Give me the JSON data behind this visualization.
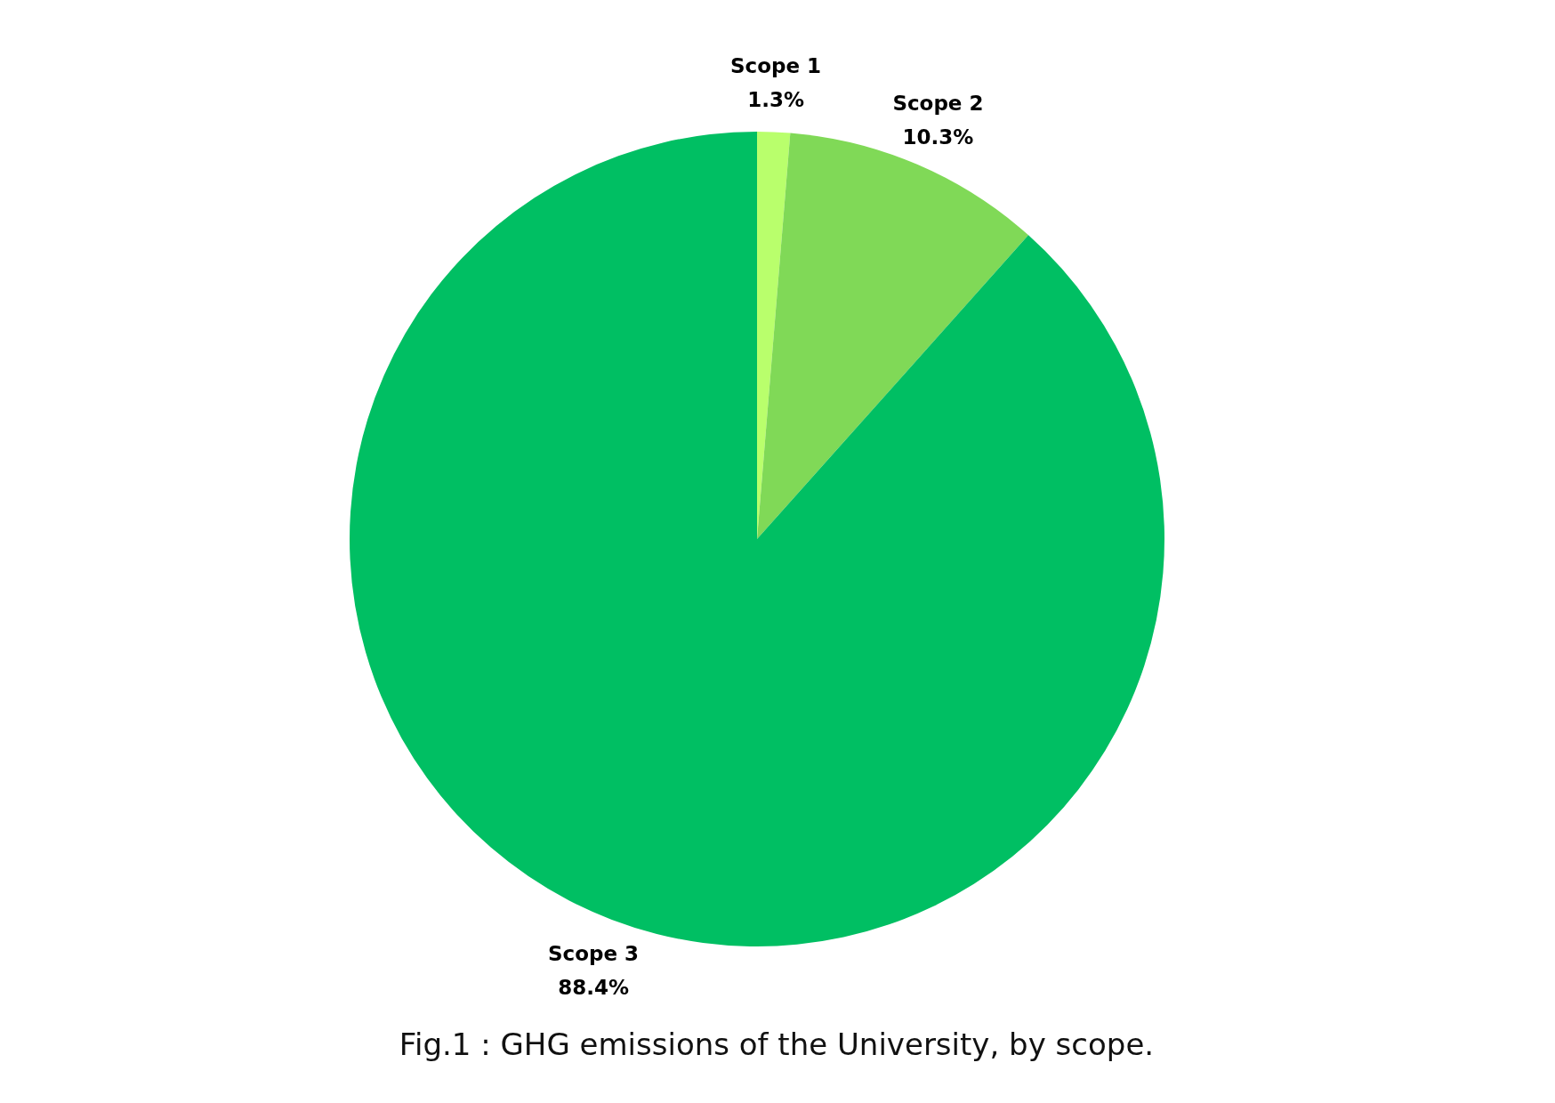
{
  "chart_data": {
    "type": "pie",
    "categories": [
      "Scope 1",
      "Scope 2",
      "Scope 3"
    ],
    "values": [
      1.3,
      10.3,
      88.4
    ],
    "value_labels": [
      "1.3%",
      "10.3%",
      "88.4%"
    ],
    "colors": [
      "#b9ff6c",
      "#80d957",
      "#00bf63"
    ],
    "annotations": [
      "Fig.1 : GHG emissions of the University, by scope."
    ]
  }
}
